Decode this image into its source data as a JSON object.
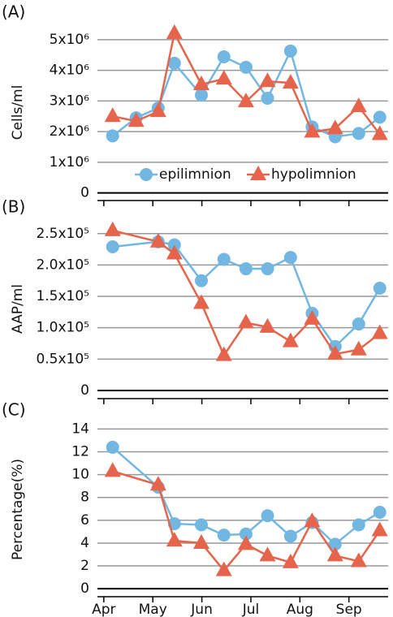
{
  "chart_data": [
    {
      "type": "line",
      "label": "(A)",
      "y_label": "Cells/ml",
      "x": [
        4.18,
        4.66,
        5.11,
        5.44,
        5.99,
        6.45,
        6.9,
        7.34,
        7.81,
        8.25,
        8.72,
        9.2,
        9.63
      ],
      "series": [
        {
          "name": "epilimnion",
          "color": "#72b7e2",
          "marker": "circle",
          "values": [
            1860000,
            2450000,
            2770000,
            4230000,
            3190000,
            4440000,
            4100000,
            3090000,
            4630000,
            2150000,
            1830000,
            1940000,
            2470000
          ]
        },
        {
          "name": "hypolimnion",
          "color": "#e5644b",
          "marker": "triangle",
          "values": [
            2500000,
            2340000,
            2660000,
            5210000,
            3540000,
            3720000,
            2980000,
            3640000,
            3590000,
            1990000,
            2100000,
            2820000,
            1910000
          ]
        }
      ],
      "xlim": [
        3.87,
        9.8
      ],
      "xticks": [
        4,
        5,
        6,
        7,
        8,
        9
      ],
      "ylim": [
        -250000,
        5500000
      ],
      "yticks": [
        0,
        {
          "value": 1000000,
          "label": "1x10⁶"
        },
        {
          "value": 2000000,
          "label": "2x10⁶"
        },
        {
          "value": 3000000,
          "label": "3x10⁶"
        },
        {
          "value": 4000000,
          "label": "4x10⁶"
        },
        {
          "value": 5000000,
          "label": "5x10⁶"
        }
      ],
      "grid": true,
      "legend": "lower center"
    },
    {
      "type": "line",
      "label": "(B)",
      "y_label": "AAP/ml",
      "x": [
        4.18,
        5.11,
        5.44,
        5.99,
        6.45,
        6.9,
        7.34,
        7.81,
        8.25,
        8.72,
        9.2,
        9.63
      ],
      "series": [
        {
          "color": "#72b7e2",
          "marker": "circle",
          "values": [
            229000,
            237000,
            232000,
            175000,
            209000,
            194000,
            194000,
            212000,
            123000,
            70000,
            106000,
            163000
          ]
        },
        {
          "color": "#e5644b",
          "marker": "triangle",
          "values": [
            255000,
            237000,
            218000,
            139000,
            56000,
            108000,
            101000,
            78000,
            114000,
            58000,
            65000,
            91000
          ]
        }
      ],
      "xlim": [
        3.87,
        9.8
      ],
      "xticks": [
        4,
        5,
        6,
        7,
        8,
        9
      ],
      "ylim": [
        -13000,
        273000
      ],
      "yticks": [
        0,
        {
          "value": 50000,
          "label": "0.5x10⁵"
        },
        {
          "value": 100000,
          "label": "1.0x10⁵"
        },
        {
          "value": 150000,
          "label": "1.5x10⁵"
        },
        {
          "value": 200000,
          "label": "2.0x10⁵"
        },
        {
          "value": 250000,
          "label": "2.5x10⁵"
        }
      ],
      "grid": true
    },
    {
      "type": "line",
      "label": "(C)",
      "y_label": "Percentage(%)",
      "x": [
        4.18,
        5.11,
        5.44,
        5.99,
        6.45,
        6.9,
        7.34,
        7.81,
        8.25,
        8.72,
        9.2,
        9.63
      ],
      "series": [
        {
          "color": "#72b7e2",
          "marker": "circle",
          "values": [
            12.4,
            8.9,
            5.7,
            5.6,
            4.7,
            4.8,
            6.4,
            4.6,
            5.8,
            3.9,
            5.6,
            6.7
          ]
        },
        {
          "color": "#e5644b",
          "marker": "triangle",
          "values": [
            10.3,
            9.1,
            4.2,
            4.0,
            1.6,
            3.9,
            2.9,
            2.3,
            5.9,
            2.9,
            2.4,
            5.1
          ]
        }
      ],
      "xlim": [
        3.87,
        9.8
      ],
      "xticks": [
        {
          "value": 4,
          "label": "Apr"
        },
        {
          "value": 5,
          "label": "May"
        },
        {
          "value": 6,
          "label": "Jun"
        },
        {
          "value": 7,
          "label": "Jul"
        },
        {
          "value": 8,
          "label": "Aug"
        },
        {
          "value": 9,
          "label": "Sep"
        }
      ],
      "ylim": [
        -0.7,
        14.6
      ],
      "yticks": [
        0,
        2,
        4,
        6,
        8,
        10,
        12,
        14
      ],
      "grid": true
    }
  ]
}
